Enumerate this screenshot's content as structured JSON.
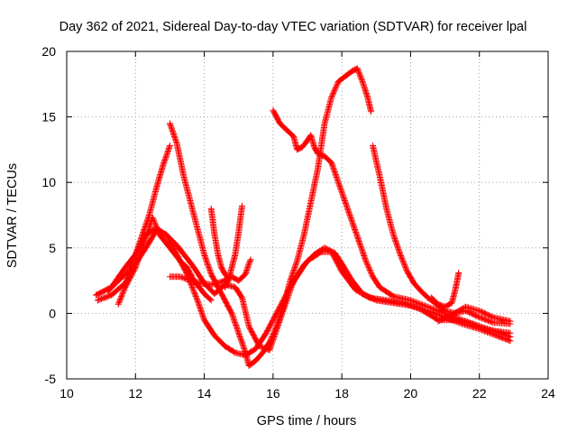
{
  "chart_data": {
    "type": "scatter",
    "title": "Day 362 of 2021, Sidereal Day-to-day VTEC variation (SDTVAR) for receiver lpal",
    "xlabel": "GPS time / hours",
    "ylabel": "SDTVAR / TECUs",
    "xlim": [
      10,
      24
    ],
    "ylim": [
      -5,
      20
    ],
    "xticks": [
      10,
      12,
      14,
      16,
      18,
      20,
      22,
      24
    ],
    "yticks": [
      -5,
      0,
      5,
      10,
      15,
      20
    ],
    "xtick_labels": [
      "10",
      "12",
      "14",
      "16",
      "18",
      "20",
      "22",
      "24"
    ],
    "ytick_labels": [
      "-5",
      "0",
      "5",
      "10",
      "15",
      "20"
    ],
    "grid": true,
    "marker": "plus",
    "color": "#ff0000",
    "series": [
      {
        "name": "s1",
        "points": [
          [
            10.85,
            1.4
          ],
          [
            11.3,
            2.0
          ],
          [
            11.7,
            3.5
          ],
          [
            12.0,
            4.5
          ],
          [
            12.3,
            6.0
          ],
          [
            12.6,
            6.5
          ],
          [
            12.9,
            6.0
          ],
          [
            13.2,
            4.5
          ],
          [
            13.5,
            3.0
          ],
          [
            13.8,
            1.0
          ],
          [
            14.0,
            -0.5
          ],
          [
            14.3,
            -1.7
          ],
          [
            14.6,
            -2.5
          ],
          [
            14.9,
            -3.0
          ],
          [
            15.2,
            -3.2
          ],
          [
            15.5,
            -2.7
          ],
          [
            15.8,
            -1.5
          ],
          [
            16.1,
            0.0
          ],
          [
            16.5,
            2.0
          ],
          [
            16.9,
            3.7
          ],
          [
            17.2,
            4.5
          ],
          [
            17.5,
            5.0
          ],
          [
            17.8,
            4.6
          ],
          [
            18.0,
            3.8
          ],
          [
            18.3,
            2.5
          ],
          [
            18.6,
            1.5
          ],
          [
            19.0,
            1.0
          ],
          [
            19.5,
            0.8
          ],
          [
            20.0,
            0.6
          ],
          [
            20.5,
            0.2
          ],
          [
            21.0,
            -0.3
          ],
          [
            21.5,
            -0.8
          ],
          [
            22.0,
            -1.2
          ],
          [
            22.5,
            -1.7
          ],
          [
            22.9,
            -2.1
          ]
        ]
      },
      {
        "name": "s2",
        "points": [
          [
            10.9,
            1.0
          ],
          [
            11.3,
            1.4
          ],
          [
            11.7,
            2.3
          ],
          [
            12.0,
            3.8
          ],
          [
            12.3,
            5.0
          ],
          [
            12.6,
            6.3
          ],
          [
            12.9,
            6.0
          ],
          [
            13.2,
            5.2
          ],
          [
            13.5,
            4.2
          ],
          [
            13.7,
            3.5
          ],
          [
            14.0,
            2.3
          ],
          [
            14.3,
            1.5
          ],
          [
            14.6,
            2.2
          ],
          [
            14.9,
            2.0
          ],
          [
            15.1,
            1.2
          ],
          [
            15.3,
            -1.0
          ],
          [
            15.6,
            -2.5
          ],
          [
            15.9,
            -2.8
          ],
          [
            16.2,
            -0.5
          ],
          [
            16.6,
            2.5
          ],
          [
            17.0,
            4.0
          ],
          [
            17.4,
            4.7
          ],
          [
            17.7,
            4.7
          ],
          [
            18.0,
            3.2
          ],
          [
            18.4,
            1.8
          ],
          [
            18.8,
            1.2
          ],
          [
            19.3,
            1.0
          ],
          [
            19.8,
            0.8
          ],
          [
            20.3,
            0.3
          ],
          [
            20.8,
            -0.5
          ],
          [
            21.3,
            -0.5
          ],
          [
            21.8,
            -0.8
          ],
          [
            22.3,
            -1.3
          ],
          [
            22.9,
            -1.5
          ]
        ]
      },
      {
        "name": "s3",
        "points": [
          [
            11.5,
            0.7
          ],
          [
            11.7,
            2.0
          ],
          [
            12.0,
            3.5
          ],
          [
            12.3,
            5.8
          ],
          [
            12.5,
            7.3
          ],
          [
            12.7,
            6.0
          ],
          [
            13.0,
            5.0
          ],
          [
            13.3,
            4.0
          ],
          [
            13.5,
            3.5
          ],
          [
            13.7,
            2.5
          ],
          [
            14.0,
            1.5
          ],
          [
            14.2,
            1.0
          ]
        ]
      },
      {
        "name": "s4",
        "points": [
          [
            11.2,
            1.7
          ],
          [
            11.5,
            2.5
          ],
          [
            11.8,
            3.2
          ],
          [
            12.0,
            4.5
          ],
          [
            12.2,
            6.0
          ],
          [
            12.4,
            7.5
          ],
          [
            12.6,
            9.5
          ],
          [
            12.8,
            11.3
          ],
          [
            13.0,
            12.8
          ]
        ]
      },
      {
        "name": "s5",
        "points": [
          [
            13.0,
            14.5
          ],
          [
            13.2,
            13.0
          ],
          [
            13.4,
            10.5
          ],
          [
            13.6,
            8.5
          ],
          [
            13.8,
            6.5
          ],
          [
            14.0,
            4.5
          ],
          [
            14.2,
            3.0
          ],
          [
            14.4,
            2.0
          ],
          [
            14.6,
            1.0
          ],
          [
            14.8,
            0.0
          ],
          [
            15.0,
            -1.5
          ],
          [
            15.2,
            -3.0
          ],
          [
            15.3,
            -4.0
          ],
          [
            15.5,
            -3.6
          ],
          [
            15.7,
            -3.0
          ],
          [
            15.9,
            -2.2
          ],
          [
            16.1,
            -1.0
          ],
          [
            16.3,
            0.5
          ],
          [
            16.5,
            2.5
          ],
          [
            16.7,
            4.0
          ],
          [
            16.9,
            6.0
          ],
          [
            17.1,
            8.5
          ],
          [
            17.3,
            11.0
          ],
          [
            17.5,
            14.5
          ],
          [
            17.7,
            16.5
          ],
          [
            17.9,
            17.7
          ],
          [
            18.1,
            18.1
          ],
          [
            18.3,
            18.5
          ],
          [
            18.45,
            18.7
          ],
          [
            18.6,
            17.7
          ],
          [
            18.75,
            16.5
          ],
          [
            18.85,
            15.4
          ]
        ]
      },
      {
        "name": "s6",
        "points": [
          [
            16.0,
            15.5
          ],
          [
            16.2,
            14.5
          ],
          [
            16.4,
            14.0
          ],
          [
            16.6,
            13.5
          ],
          [
            16.7,
            12.5
          ],
          [
            16.85,
            12.7
          ],
          [
            17.0,
            13.2
          ],
          [
            17.1,
            13.6
          ],
          [
            17.2,
            12.7
          ],
          [
            17.3,
            12.2
          ],
          [
            17.5,
            12.0
          ],
          [
            17.7,
            11.5
          ],
          [
            17.9,
            10.0
          ],
          [
            18.1,
            8.5
          ],
          [
            18.3,
            7.0
          ],
          [
            18.5,
            5.5
          ],
          [
            18.7,
            4.0
          ],
          [
            18.9,
            2.8
          ],
          [
            19.1,
            2.0
          ],
          [
            19.5,
            1.3
          ],
          [
            20.0,
            1.0
          ],
          [
            20.5,
            0.5
          ],
          [
            21.0,
            0.0
          ],
          [
            21.5,
            -0.5
          ],
          [
            22.0,
            -1.0
          ],
          [
            22.5,
            -1.4
          ],
          [
            22.9,
            -1.8
          ]
        ]
      },
      {
        "name": "s7",
        "points": [
          [
            18.9,
            12.8
          ],
          [
            19.1,
            10.5
          ],
          [
            19.3,
            8.0
          ],
          [
            19.5,
            6.0
          ],
          [
            19.7,
            4.5
          ],
          [
            19.9,
            3.2
          ],
          [
            20.1,
            2.3
          ],
          [
            20.3,
            1.7
          ],
          [
            20.5,
            1.2
          ],
          [
            20.7,
            0.8
          ],
          [
            21.0,
            0.2
          ],
          [
            21.3,
            0.0
          ],
          [
            21.6,
            0.2
          ],
          [
            22.0,
            -0.3
          ],
          [
            22.4,
            -0.7
          ],
          [
            22.9,
            -0.8
          ]
        ]
      },
      {
        "name": "s8",
        "points": [
          [
            14.2,
            8.0
          ],
          [
            14.3,
            6.0
          ],
          [
            14.4,
            4.5
          ],
          [
            14.5,
            3.5
          ],
          [
            14.6,
            3.0
          ],
          [
            14.7,
            2.7
          ]
        ]
      },
      {
        "name": "s9",
        "points": [
          [
            15.1,
            8.2
          ],
          [
            15.0,
            6.2
          ],
          [
            14.9,
            4.5
          ],
          [
            14.8,
            3.5
          ],
          [
            14.7,
            2.5
          ],
          [
            14.6,
            2.0
          ]
        ]
      },
      {
        "name": "s10",
        "points": [
          [
            13.0,
            2.8
          ],
          [
            13.3,
            2.8
          ],
          [
            13.6,
            2.5
          ],
          [
            13.9,
            2.3
          ],
          [
            14.2,
            2.2
          ],
          [
            14.5,
            2.4
          ],
          [
            14.8,
            2.8
          ],
          [
            15.0,
            2.5
          ],
          [
            15.2,
            3.0
          ],
          [
            15.3,
            3.8
          ],
          [
            15.35,
            4.1
          ]
        ]
      },
      {
        "name": "s11",
        "points": [
          [
            20.6,
            1.2
          ],
          [
            20.8,
            0.7
          ],
          [
            21.0,
            0.5
          ],
          [
            21.2,
            0.8
          ],
          [
            21.3,
            1.8
          ],
          [
            21.4,
            3.1
          ]
        ]
      },
      {
        "name": "s12",
        "points": [
          [
            20.8,
            -0.6
          ],
          [
            21.2,
            -0.1
          ],
          [
            21.6,
            0.5
          ],
          [
            22.0,
            0.2
          ],
          [
            22.4,
            -0.3
          ],
          [
            22.9,
            -0.6
          ]
        ]
      }
    ]
  }
}
